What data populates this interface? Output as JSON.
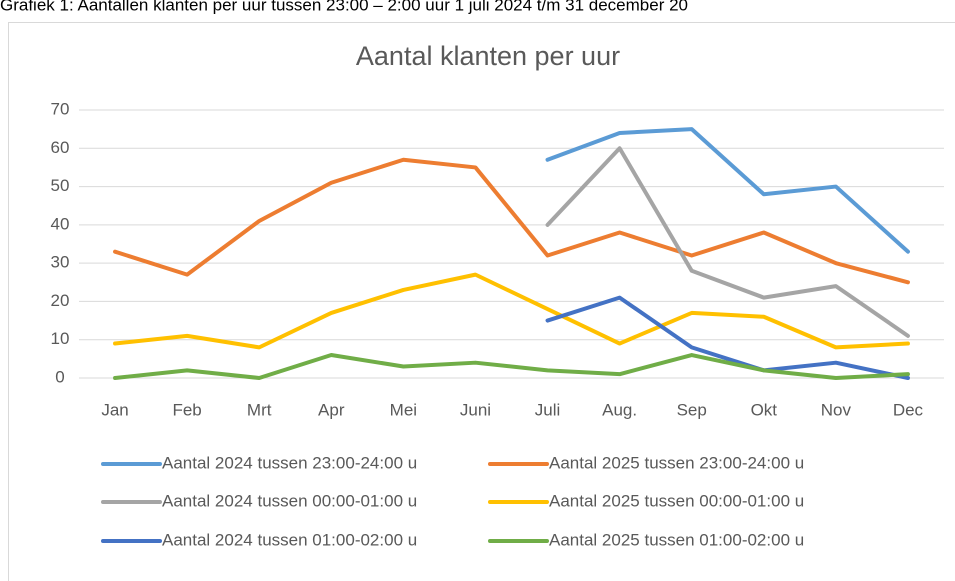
{
  "caption": "Grafiek 1: Aantallen klanten per uur tussen 23:00 – 2:00 uur 1 juli 2024 t/m 31 december 20",
  "chart_data": {
    "type": "line",
    "title": "Aantal klanten per uur",
    "categories": [
      "Jan",
      "Feb",
      "Mrt",
      "Apr",
      "Mei",
      "Juni",
      "Juli",
      "Aug.",
      "Sep",
      "Okt",
      "Nov",
      "Dec"
    ],
    "series": [
      {
        "name": "Aantal 2024 tussen 23:00-24:00 u",
        "color": "#5b9bd5",
        "values": [
          null,
          null,
          null,
          null,
          null,
          null,
          57,
          64,
          65,
          48,
          50,
          33
        ]
      },
      {
        "name": "Aantal 2025 tussen 23:00-24:00 u",
        "color": "#ed7d31",
        "values": [
          33,
          27,
          41,
          51,
          57,
          55,
          32,
          38,
          32,
          38,
          30,
          25
        ]
      },
      {
        "name": "Aantal 2024 tussen 00:00-01:00 u",
        "color": "#a5a5a5",
        "values": [
          null,
          null,
          null,
          null,
          null,
          null,
          40,
          60,
          28,
          21,
          24,
          11
        ]
      },
      {
        "name": "Aantal 2025 tussen 00:00-01:00 u",
        "color": "#ffc000",
        "values": [
          9,
          11,
          8,
          17,
          23,
          27,
          18,
          9,
          17,
          16,
          8,
          9
        ]
      },
      {
        "name": "Aantal 2024 tussen 01:00-02:00 u",
        "color": "#4472c4",
        "values": [
          null,
          null,
          null,
          null,
          null,
          null,
          15,
          21,
          8,
          2,
          4,
          0
        ]
      },
      {
        "name": "Aantal 2025 tussen 01:00-02:00 u",
        "color": "#70ad47",
        "values": [
          0,
          2,
          0,
          6,
          3,
          4,
          2,
          1,
          6,
          2,
          0,
          1
        ]
      }
    ],
    "ylim": [
      0,
      70
    ],
    "yticks": [
      0,
      10,
      20,
      30,
      40,
      50,
      60,
      70
    ],
    "grid": true,
    "legend": "bottom"
  }
}
